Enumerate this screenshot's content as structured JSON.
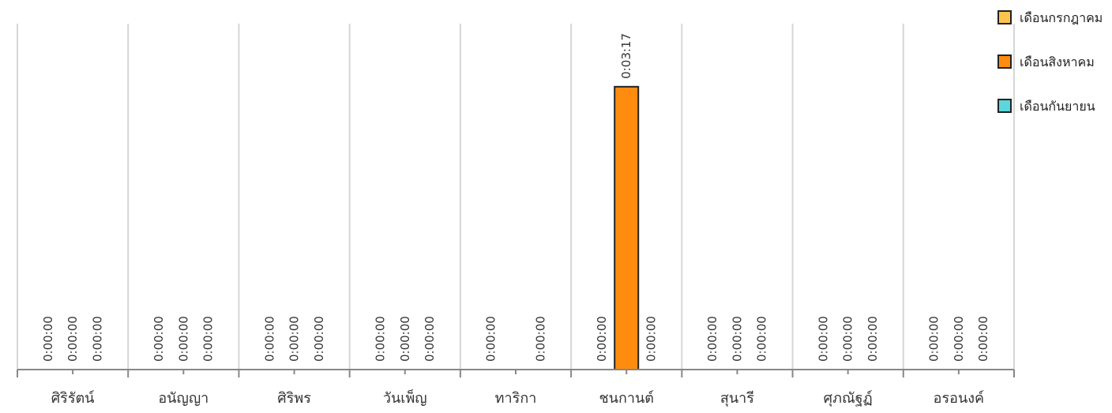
{
  "chart_data": {
    "type": "bar",
    "categories": [
      "ศิริรัตน์",
      "อนัญญา",
      "ศิริพร",
      "วันเพ็ญ",
      "ทาริกา",
      "ชนกานต์",
      "สุนารี",
      "ศุภณัฐฏ์",
      "อรอนงค์"
    ],
    "series": [
      {
        "name": "เดือนกรกฎาคม",
        "color": "#FFC44D",
        "values": [
          0,
          0,
          0,
          0,
          0,
          0,
          0,
          0,
          0
        ],
        "labels": [
          "0:00:00",
          "0:00:00",
          "0:00:00",
          "0:00:00",
          "0:00:00",
          "0:00:00",
          "0:00:00",
          "0:00:00",
          "0:00:00"
        ]
      },
      {
        "name": "เดือนสิงหาคม",
        "color": "#FF8C0F",
        "values": [
          0,
          0,
          0,
          0,
          0,
          197,
          0,
          0,
          0
        ],
        "labels": [
          "0:00:00",
          "0:00:00",
          "0:00:00",
          "0:00:00",
          "",
          "0:03:17",
          "0:00:00",
          "0:00:00",
          "0:00:00"
        ]
      },
      {
        "name": "เดือนกันยายน",
        "color": "#5CD6DA",
        "values": [
          0,
          0,
          0,
          0,
          0,
          0,
          0,
          0,
          0
        ],
        "labels": [
          "0:00:00",
          "0:00:00",
          "0:00:00",
          "0:00:00",
          "0:00:00",
          "0:00:00",
          "0:00:00",
          "0:00:00",
          "0:00:00"
        ]
      }
    ],
    "value_unit": "seconds",
    "ylim": [
      0,
      220
    ],
    "grid": true,
    "legend_position": "top-right"
  }
}
